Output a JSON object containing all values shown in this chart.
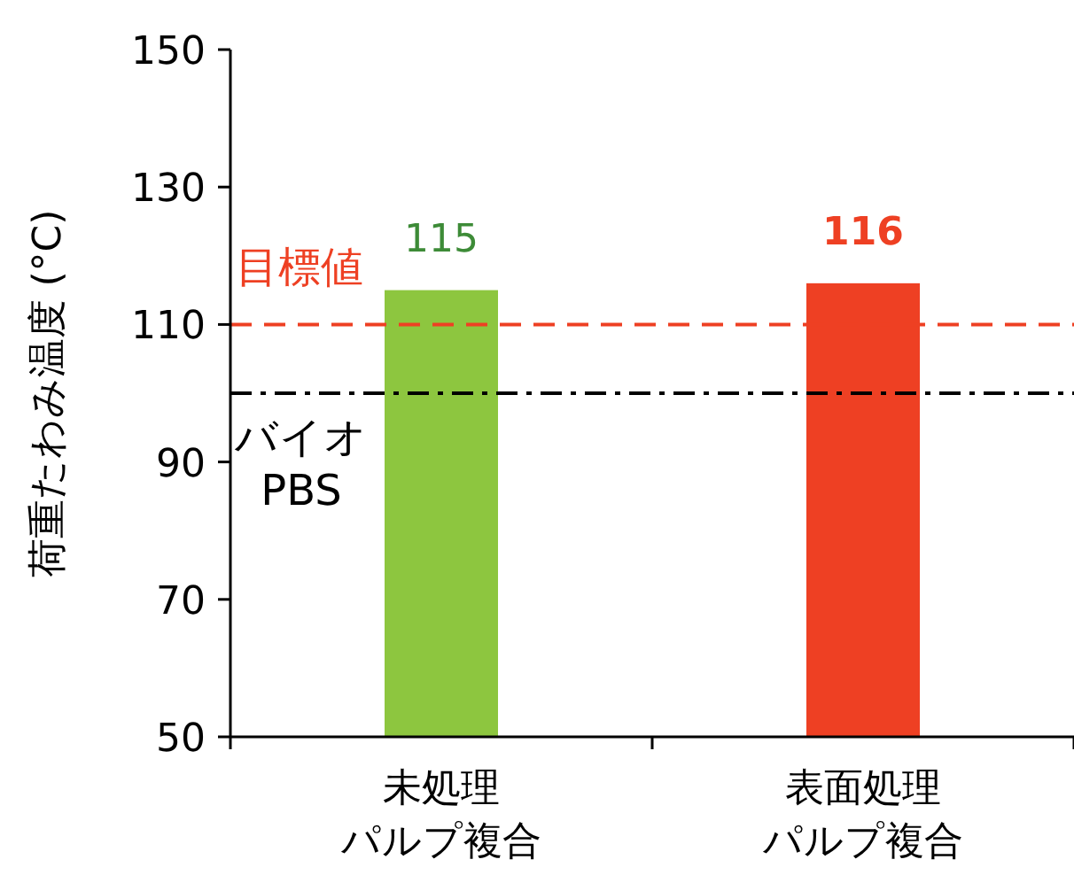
{
  "chart_data": {
    "type": "bar",
    "ylabel": "荷重たわみ温度 (°C)",
    "categories": [
      "未処理パルプ複合",
      "表面処理パルプ複合"
    ],
    "values": [
      115,
      116
    ],
    "colors": [
      "#8dc63f",
      "#ee4023"
    ],
    "data_labels": true,
    "ylim": [
      50,
      150
    ],
    "yticks": [
      50,
      70,
      90,
      110,
      130,
      150
    ],
    "grid": false,
    "ref_lines": [
      {
        "axis": "y",
        "value": 110,
        "label": "目標値",
        "color": "#ee4023",
        "line_style": "dashed"
      },
      {
        "axis": "y",
        "value": 100,
        "label": "バイオ\nPBS",
        "color": "#000000",
        "line_style": "dashdot"
      }
    ]
  }
}
